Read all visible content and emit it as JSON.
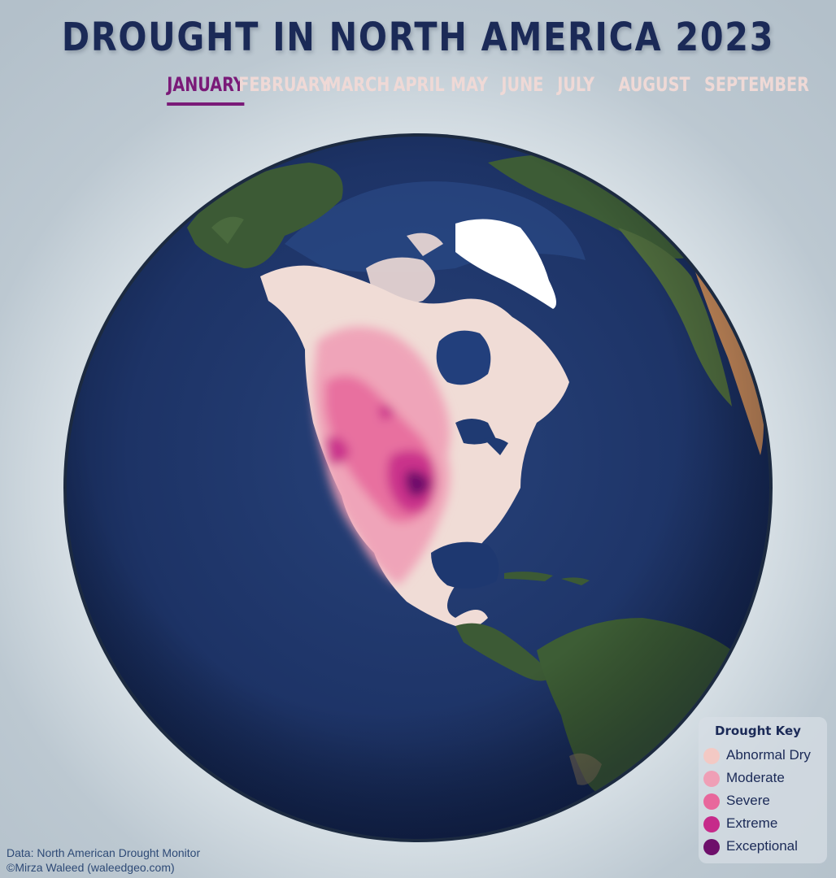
{
  "title": "DROUGHT IN NORTH AMERICA 2023",
  "months": [
    "JANUARY",
    "FEBRUARY",
    "MARCH",
    "APRIL",
    "MAY",
    "JUNE",
    "JULY",
    "AUGUST",
    "SEPTEMBER"
  ],
  "active_month": "JANUARY",
  "legend": {
    "title": "Drought Key",
    "items": [
      {
        "label": "Abnormal Dry",
        "color": "#f3c9c4"
      },
      {
        "label": "Moderate",
        "color": "#ef9fb6"
      },
      {
        "label": "Severe",
        "color": "#e8679c"
      },
      {
        "label": "Extreme",
        "color": "#c62a8a"
      },
      {
        "label": "Exceptional",
        "color": "#6e0f6b"
      }
    ]
  },
  "credits": {
    "source": "Data: North American Drought Monitor",
    "author": "©Mirza Waleed (waleedgeo.com)"
  },
  "colors": {
    "ocean": "#1d3366",
    "land": "#3a5a34",
    "drought_base": "#f0dcd6",
    "ice": "#ffffff",
    "title": "#1b2a57",
    "active_month": "#7a1a78",
    "inactive_month": "#efd9d6"
  }
}
